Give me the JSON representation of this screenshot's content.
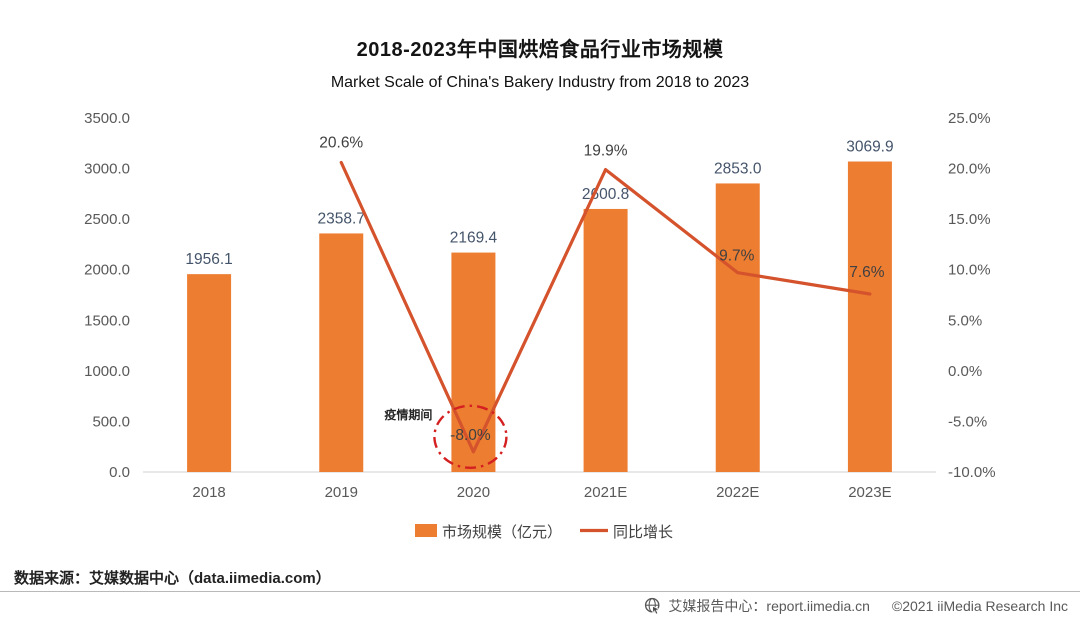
{
  "header": {
    "title": "2018-2023年中国烘焙食品行业市场规模",
    "subtitle": "Market Scale of China's Bakery Industry from 2018 to 2023"
  },
  "chart_data": {
    "type": "bar+line",
    "categories": [
      "2018",
      "2019",
      "2020",
      "2021E",
      "2022E",
      "2023E"
    ],
    "series": [
      {
        "name": "市场规模（亿元）",
        "type": "bar",
        "values": [
          1956.1,
          2358.7,
          2169.4,
          2600.8,
          2853.0,
          3069.9
        ],
        "labels": [
          "1956.1",
          "2358.7",
          "2169.4",
          "2600.8",
          "2853.0",
          "3069.9"
        ]
      },
      {
        "name": "同比增长",
        "type": "line",
        "axis": "right",
        "values": [
          null,
          20.6,
          -8.0,
          19.9,
          9.7,
          7.6
        ],
        "labels": [
          null,
          "20.6%",
          "-8.0%",
          "19.9%",
          "9.7%",
          "7.6%"
        ]
      }
    ],
    "left_axis": {
      "min": 0,
      "max": 3500,
      "ticks": [
        "3500.0",
        "3000.0",
        "2500.0",
        "2000.0",
        "1500.0",
        "1000.0",
        "500.0",
        "0.0"
      ]
    },
    "right_axis": {
      "min": -10,
      "max": 25,
      "ticks": [
        "25.0%",
        "20.0%",
        "15.0%",
        "10.0%",
        "5.0%",
        "0.0%",
        "-5.0%",
        "-10.0%"
      ]
    },
    "annotation": {
      "label": "疫情期间",
      "circled_value": "-8.0%",
      "circled_category": "2020"
    },
    "legend_position": "bottom",
    "grid": false
  },
  "legend": {
    "bar_label": "市场规模（亿元）",
    "line_label": "同比增长"
  },
  "footer": {
    "source": "数据来源：艾媒数据中心（data.iimedia.com）",
    "report_center": "艾媒报告中心：report.iimedia.cn",
    "copyright": "©2021  iiMedia Research  Inc"
  },
  "colors": {
    "bar": "#ED7D31",
    "line": "#D5532C",
    "annotation_circle": "#D42020",
    "annotation_label": "#262626",
    "bar_value_label": "#44546A",
    "line_value_label": "#404040",
    "axis_label": "#595959",
    "baseline": "#D9D9D9"
  }
}
